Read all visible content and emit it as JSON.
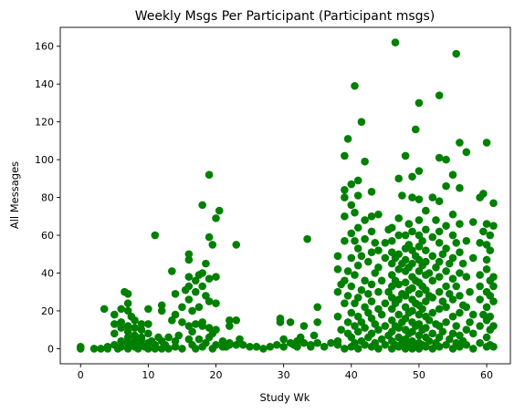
{
  "chart_data": {
    "type": "scatter",
    "title": "Weekly Msgs Per Participant (Participant msgs)",
    "xlabel": "Study Wk",
    "ylabel": "All Messages",
    "xlim": [
      -3,
      63.5
    ],
    "ylim": [
      -8,
      170
    ],
    "xticks": [
      0,
      10,
      20,
      30,
      40,
      50,
      60
    ],
    "yticks": [
      0,
      20,
      40,
      60,
      80,
      100,
      120,
      140,
      160
    ],
    "grid": false,
    "legend": "none",
    "marker_color": "#008000",
    "points": [
      [
        0,
        1
      ],
      [
        0,
        0
      ],
      [
        2,
        0
      ],
      [
        3,
        0
      ],
      [
        3.5,
        21
      ],
      [
        4,
        1
      ],
      [
        4,
        0
      ],
      [
        5,
        2
      ],
      [
        5,
        8
      ],
      [
        5,
        13
      ],
      [
        5,
        18
      ],
      [
        5.5,
        0
      ],
      [
        6,
        4
      ],
      [
        6,
        11
      ],
      [
        6,
        14
      ],
      [
        6,
        21
      ],
      [
        6,
        1
      ],
      [
        6.5,
        30
      ],
      [
        7,
        0
      ],
      [
        7,
        3
      ],
      [
        7,
        6
      ],
      [
        7,
        9
      ],
      [
        7,
        12
      ],
      [
        7,
        20
      ],
      [
        7,
        24
      ],
      [
        7,
        29
      ],
      [
        7.5,
        2
      ],
      [
        7.5,
        17
      ],
      [
        8,
        1
      ],
      [
        8,
        4
      ],
      [
        8,
        7
      ],
      [
        8,
        11
      ],
      [
        8,
        15
      ],
      [
        8,
        3
      ],
      [
        8.5,
        0
      ],
      [
        9,
        2
      ],
      [
        9,
        6
      ],
      [
        9,
        10
      ],
      [
        9,
        13
      ],
      [
        9,
        5
      ],
      [
        9.5,
        1
      ],
      [
        10,
        0
      ],
      [
        10,
        3
      ],
      [
        10,
        8
      ],
      [
        10,
        13
      ],
      [
        10,
        21
      ],
      [
        10.5,
        4
      ],
      [
        11,
        60
      ],
      [
        11,
        2
      ],
      [
        11,
        0
      ],
      [
        11.5,
        6
      ],
      [
        12,
        4
      ],
      [
        12,
        23
      ],
      [
        12,
        20
      ],
      [
        12,
        0
      ],
      [
        12.5,
        2
      ],
      [
        13,
        6
      ],
      [
        13,
        0
      ],
      [
        13.5,
        41
      ],
      [
        13.5,
        15
      ],
      [
        14,
        18
      ],
      [
        14,
        1
      ],
      [
        14,
        4
      ],
      [
        14,
        29
      ],
      [
        14.5,
        7
      ],
      [
        15,
        0
      ],
      [
        15,
        14
      ],
      [
        15,
        22
      ],
      [
        15.5,
        31
      ],
      [
        16,
        5
      ],
      [
        16,
        12
      ],
      [
        16,
        26
      ],
      [
        16,
        33
      ],
      [
        16,
        38
      ],
      [
        16,
        47
      ],
      [
        16,
        50
      ],
      [
        16.5,
        9
      ],
      [
        16.5,
        20
      ],
      [
        16.5,
        2
      ],
      [
        17,
        0
      ],
      [
        17,
        13
      ],
      [
        17,
        30
      ],
      [
        17,
        36
      ],
      [
        17.5,
        39
      ],
      [
        17.5,
        22
      ],
      [
        17.5,
        5
      ],
      [
        18,
        1
      ],
      [
        18,
        12
      ],
      [
        18,
        14
      ],
      [
        18,
        33
      ],
      [
        18,
        40
      ],
      [
        18,
        76
      ],
      [
        18.5,
        3
      ],
      [
        18.5,
        28
      ],
      [
        18.5,
        45
      ],
      [
        19,
        6
      ],
      [
        19,
        11
      ],
      [
        19,
        25
      ],
      [
        19,
        37
      ],
      [
        19,
        59
      ],
      [
        19,
        92
      ],
      [
        19.5,
        55
      ],
      [
        19.5,
        0
      ],
      [
        19.5,
        8
      ],
      [
        20,
        38
      ],
      [
        20,
        24
      ],
      [
        20,
        2
      ],
      [
        20,
        10
      ],
      [
        20,
        69
      ],
      [
        20.5,
        73
      ],
      [
        21,
        4
      ],
      [
        21,
        1
      ],
      [
        21.5,
        1
      ],
      [
        22,
        2
      ],
      [
        22,
        12
      ],
      [
        22,
        15
      ],
      [
        22,
        3
      ],
      [
        23,
        55
      ],
      [
        23,
        2
      ],
      [
        23,
        15
      ],
      [
        23.5,
        5
      ],
      [
        24,
        2
      ],
      [
        25,
        1
      ],
      [
        26,
        1
      ],
      [
        27,
        0
      ],
      [
        28,
        1
      ],
      [
        29,
        2
      ],
      [
        29.5,
        16
      ],
      [
        29.5,
        14
      ],
      [
        30,
        1
      ],
      [
        30,
        5
      ],
      [
        31,
        3
      ],
      [
        31,
        14
      ],
      [
        31.5,
        2
      ],
      [
        32,
        1
      ],
      [
        32,
        4
      ],
      [
        32.5,
        6
      ],
      [
        33,
        3
      ],
      [
        33,
        12
      ],
      [
        33.5,
        58
      ],
      [
        34,
        2
      ],
      [
        34,
        1
      ],
      [
        34.5,
        7
      ],
      [
        35,
        14
      ],
      [
        35,
        22
      ],
      [
        35,
        3
      ],
      [
        36,
        1
      ],
      [
        37,
        3
      ],
      [
        38,
        4
      ],
      [
        38,
        17
      ],
      [
        38,
        30
      ],
      [
        38,
        42
      ],
      [
        38,
        49
      ],
      [
        38,
        2
      ],
      [
        38.5,
        10
      ],
      [
        38.5,
        34
      ],
      [
        39,
        0
      ],
      [
        39,
        24
      ],
      [
        39,
        36
      ],
      [
        39,
        57
      ],
      [
        39,
        70
      ],
      [
        39,
        80
      ],
      [
        39,
        84
      ],
      [
        39,
        102
      ],
      [
        39.5,
        8
      ],
      [
        39.5,
        14
      ],
      [
        39.5,
        28
      ],
      [
        39.5,
        41
      ],
      [
        39.5,
        111
      ],
      [
        40,
        1
      ],
      [
        40,
        6
      ],
      [
        40,
        19
      ],
      [
        40,
        33
      ],
      [
        40,
        48
      ],
      [
        40,
        61
      ],
      [
        40,
        76
      ],
      [
        40,
        87
      ],
      [
        40.5,
        3
      ],
      [
        40.5,
        12
      ],
      [
        40.5,
        24
      ],
      [
        40.5,
        39
      ],
      [
        40.5,
        57
      ],
      [
        40.5,
        72
      ],
      [
        40.5,
        139
      ],
      [
        41,
        0
      ],
      [
        41,
        9
      ],
      [
        41,
        17
      ],
      [
        41,
        27
      ],
      [
        41,
        44
      ],
      [
        41,
        53
      ],
      [
        41,
        64
      ],
      [
        41,
        81
      ],
      [
        41,
        89
      ],
      [
        41.5,
        4
      ],
      [
        41.5,
        14
      ],
      [
        41.5,
        31
      ],
      [
        41.5,
        49
      ],
      [
        41.5,
        120
      ],
      [
        42,
        2
      ],
      [
        42,
        11
      ],
      [
        42,
        22
      ],
      [
        42,
        36
      ],
      [
        42,
        58
      ],
      [
        42,
        68
      ],
      [
        42,
        99
      ],
      [
        42.5,
        6
      ],
      [
        42.5,
        19
      ],
      [
        42.5,
        29
      ],
      [
        42.5,
        46
      ],
      [
        43,
        1
      ],
      [
        43,
        8
      ],
      [
        43,
        16
      ],
      [
        43,
        25
      ],
      [
        43,
        34
      ],
      [
        43,
        51
      ],
      [
        43,
        62
      ],
      [
        43,
        70
      ],
      [
        43,
        83
      ],
      [
        43.5,
        3
      ],
      [
        43.5,
        13
      ],
      [
        43.5,
        40
      ],
      [
        43.5,
        56
      ],
      [
        44,
        0
      ],
      [
        44,
        10
      ],
      [
        44,
        21
      ],
      [
        44,
        30
      ],
      [
        44,
        43
      ],
      [
        44,
        52
      ],
      [
        44,
        71
      ],
      [
        44.5,
        5
      ],
      [
        44.5,
        18
      ],
      [
        44.5,
        36
      ],
      [
        45,
        2
      ],
      [
        45,
        12
      ],
      [
        45,
        24
      ],
      [
        45,
        48
      ],
      [
        45,
        56
      ],
      [
        45.5,
        7
      ],
      [
        45.5,
        30
      ],
      [
        45.5,
        63
      ],
      [
        46,
        0
      ],
      [
        46,
        4
      ],
      [
        46,
        9
      ],
      [
        46,
        15
      ],
      [
        46,
        21
      ],
      [
        46,
        27
      ],
      [
        46,
        33
      ],
      [
        46,
        39
      ],
      [
        46,
        45
      ],
      [
        46,
        51
      ],
      [
        46,
        57
      ],
      [
        46,
        64
      ],
      [
        46.5,
        162
      ],
      [
        46.5,
        2
      ],
      [
        46.5,
        12
      ],
      [
        46.5,
        24
      ],
      [
        46.5,
        36
      ],
      [
        46.5,
        48
      ],
      [
        47,
        1
      ],
      [
        47,
        6
      ],
      [
        47,
        11
      ],
      [
        47,
        18
      ],
      [
        47,
        26
      ],
      [
        47,
        34
      ],
      [
        47,
        42
      ],
      [
        47,
        50
      ],
      [
        47,
        60
      ],
      [
        47,
        69
      ],
      [
        47,
        90
      ],
      [
        47.5,
        3
      ],
      [
        47.5,
        14
      ],
      [
        47.5,
        29
      ],
      [
        47.5,
        45
      ],
      [
        47.5,
        81
      ],
      [
        48,
        0
      ],
      [
        48,
        5
      ],
      [
        48,
        10
      ],
      [
        48,
        16
      ],
      [
        48,
        22
      ],
      [
        48,
        28
      ],
      [
        48,
        35
      ],
      [
        48,
        41
      ],
      [
        48,
        47
      ],
      [
        48,
        53
      ],
      [
        48,
        60
      ],
      [
        48,
        102
      ],
      [
        48.5,
        2
      ],
      [
        48.5,
        8
      ],
      [
        48.5,
        19
      ],
      [
        48.5,
        31
      ],
      [
        48.5,
        43
      ],
      [
        48.5,
        55
      ],
      [
        48.5,
        66
      ],
      [
        49,
        0
      ],
      [
        49,
        4
      ],
      [
        49,
        9
      ],
      [
        49,
        14
      ],
      [
        49,
        20
      ],
      [
        49,
        26
      ],
      [
        49,
        32
      ],
      [
        49,
        38
      ],
      [
        49,
        45
      ],
      [
        49,
        52
      ],
      [
        49,
        62
      ],
      [
        49,
        80
      ],
      [
        49,
        91
      ],
      [
        49.5,
        116
      ],
      [
        49.5,
        1
      ],
      [
        49.5,
        12
      ],
      [
        49.5,
        24
      ],
      [
        49.5,
        36
      ],
      [
        49.5,
        49
      ],
      [
        50,
        0
      ],
      [
        50,
        3
      ],
      [
        50,
        7
      ],
      [
        50,
        13
      ],
      [
        50,
        18
      ],
      [
        50,
        23
      ],
      [
        50,
        29
      ],
      [
        50,
        35
      ],
      [
        50,
        41
      ],
      [
        50,
        47
      ],
      [
        50,
        54
      ],
      [
        50,
        60
      ],
      [
        50,
        68
      ],
      [
        50,
        79
      ],
      [
        50,
        94
      ],
      [
        50,
        130
      ],
      [
        50.5,
        2
      ],
      [
        50.5,
        10
      ],
      [
        50.5,
        21
      ],
      [
        50.5,
        33
      ],
      [
        50.5,
        44
      ],
      [
        50.5,
        57
      ],
      [
        51,
        1
      ],
      [
        51,
        6
      ],
      [
        51,
        11
      ],
      [
        51,
        17
      ],
      [
        51,
        25
      ],
      [
        51,
        31
      ],
      [
        51,
        39
      ],
      [
        51,
        46
      ],
      [
        51,
        52
      ],
      [
        51,
        63
      ],
      [
        51,
        73
      ],
      [
        51.5,
        4
      ],
      [
        51.5,
        15
      ],
      [
        51.5,
        28
      ],
      [
        51.5,
        40
      ],
      [
        52,
        80
      ],
      [
        52,
        0
      ],
      [
        52,
        8
      ],
      [
        52,
        19
      ],
      [
        52,
        27
      ],
      [
        52,
        36
      ],
      [
        52,
        49
      ],
      [
        52,
        59
      ],
      [
        52.5,
        3
      ],
      [
        52.5,
        13
      ],
      [
        52.5,
        43
      ],
      [
        52.5,
        68
      ],
      [
        53,
        134
      ],
      [
        53,
        1
      ],
      [
        53,
        6
      ],
      [
        53,
        12
      ],
      [
        53,
        21
      ],
      [
        53,
        30
      ],
      [
        53,
        38
      ],
      [
        53,
        46
      ],
      [
        53,
        56
      ],
      [
        53,
        62
      ],
      [
        53,
        78
      ],
      [
        53,
        101
      ],
      [
        53.5,
        9
      ],
      [
        53.5,
        25
      ],
      [
        53.5,
        50
      ],
      [
        54,
        2
      ],
      [
        54,
        14
      ],
      [
        54,
        22
      ],
      [
        54,
        33
      ],
      [
        54,
        41
      ],
      [
        54,
        53
      ],
      [
        54,
        65
      ],
      [
        54,
        86
      ],
      [
        54,
        100
      ],
      [
        54.5,
        5
      ],
      [
        54.5,
        29
      ],
      [
        54.5,
        45
      ],
      [
        55,
        0
      ],
      [
        55,
        8
      ],
      [
        55,
        17
      ],
      [
        55,
        26
      ],
      [
        55,
        37
      ],
      [
        55,
        48
      ],
      [
        55,
        60
      ],
      [
        55,
        71
      ],
      [
        55,
        92
      ],
      [
        55.5,
        156
      ],
      [
        55.5,
        3
      ],
      [
        55.5,
        12
      ],
      [
        55.5,
        33
      ],
      [
        55.5,
        56
      ],
      [
        56,
        1
      ],
      [
        56,
        7
      ],
      [
        56,
        19
      ],
      [
        56,
        28
      ],
      [
        56,
        40
      ],
      [
        56,
        51
      ],
      [
        56,
        66
      ],
      [
        56,
        85
      ],
      [
        56,
        109
      ],
      [
        56.5,
        4
      ],
      [
        56.5,
        23
      ],
      [
        56.5,
        45
      ],
      [
        57,
        2
      ],
      [
        57,
        10
      ],
      [
        57,
        22
      ],
      [
        57,
        38
      ],
      [
        57,
        57
      ],
      [
        57,
        104
      ],
      [
        57.5,
        14
      ],
      [
        57.5,
        30
      ],
      [
        58,
        0
      ],
      [
        58,
        8
      ],
      [
        58,
        18
      ],
      [
        58,
        48
      ],
      [
        58,
        67
      ],
      [
        59,
        3
      ],
      [
        59,
        12
      ],
      [
        59,
        26
      ],
      [
        59,
        33
      ],
      [
        59,
        39
      ],
      [
        59,
        56
      ],
      [
        59,
        80
      ],
      [
        59.5,
        18
      ],
      [
        59.5,
        62
      ],
      [
        59.5,
        82
      ],
      [
        60,
        1
      ],
      [
        60,
        6
      ],
      [
        60,
        15
      ],
      [
        60,
        22
      ],
      [
        60,
        30
      ],
      [
        60,
        42
      ],
      [
        60,
        47
      ],
      [
        60,
        55
      ],
      [
        60,
        66
      ],
      [
        60,
        109
      ],
      [
        60.5,
        2
      ],
      [
        60.5,
        10
      ],
      [
        60.5,
        17
      ],
      [
        60.5,
        28
      ],
      [
        60.5,
        36
      ],
      [
        60.5,
        52
      ],
      [
        60.5,
        60
      ],
      [
        61,
        1
      ],
      [
        61,
        12
      ],
      [
        61,
        25
      ],
      [
        61,
        33
      ],
      [
        61,
        38
      ],
      [
        61,
        65
      ],
      [
        61,
        77
      ]
    ]
  }
}
